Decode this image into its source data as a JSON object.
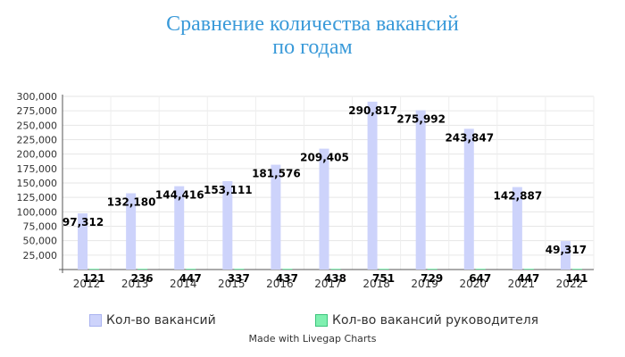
{
  "chart_data": {
    "type": "bar",
    "title_line1": "Сравнение количества вакансий",
    "title_line2": "по годам",
    "categories": [
      "2012",
      "2013",
      "2014",
      "2015",
      "2016",
      "2017",
      "2018",
      "2019",
      "2020",
      "2021",
      "2022"
    ],
    "series": [
      {
        "name": "Кол-во вакансий",
        "color": "#cdd3fb",
        "border": "#aab3f0",
        "values": [
          97312,
          132180,
          144416,
          153111,
          181576,
          209405,
          290817,
          275992,
          243847,
          142887,
          49317
        ],
        "labels": [
          "97,312",
          "132,180",
          "144,416",
          "153,111",
          "181,576",
          "209,405",
          "290,817",
          "275,992",
          "243,847",
          "142,887",
          "49,317"
        ]
      },
      {
        "name": "Кол-во вакансий руководителя",
        "color": "#7ff0b0",
        "border": "#3cc47c",
        "values": [
          121,
          236,
          447,
          337,
          437,
          438,
          751,
          729,
          647,
          447,
          141
        ],
        "labels": [
          "121",
          "236",
          "447",
          "337",
          "437",
          "438",
          "751",
          "729",
          "647",
          "447",
          "141"
        ]
      }
    ],
    "ylim": [
      0,
      300000
    ],
    "yticks": [
      25000,
      50000,
      75000,
      100000,
      125000,
      150000,
      175000,
      200000,
      225000,
      250000,
      275000,
      300000
    ],
    "ytick_labels": [
      "25,000",
      "50,000",
      "75,000",
      "100,000",
      "125,000",
      "150,000",
      "175,000",
      "200,000",
      "225,000",
      "250,000",
      "275,000",
      "300,000"
    ],
    "grid": true,
    "legend_position": "bottom"
  },
  "credit": "Made with Livegap Charts"
}
